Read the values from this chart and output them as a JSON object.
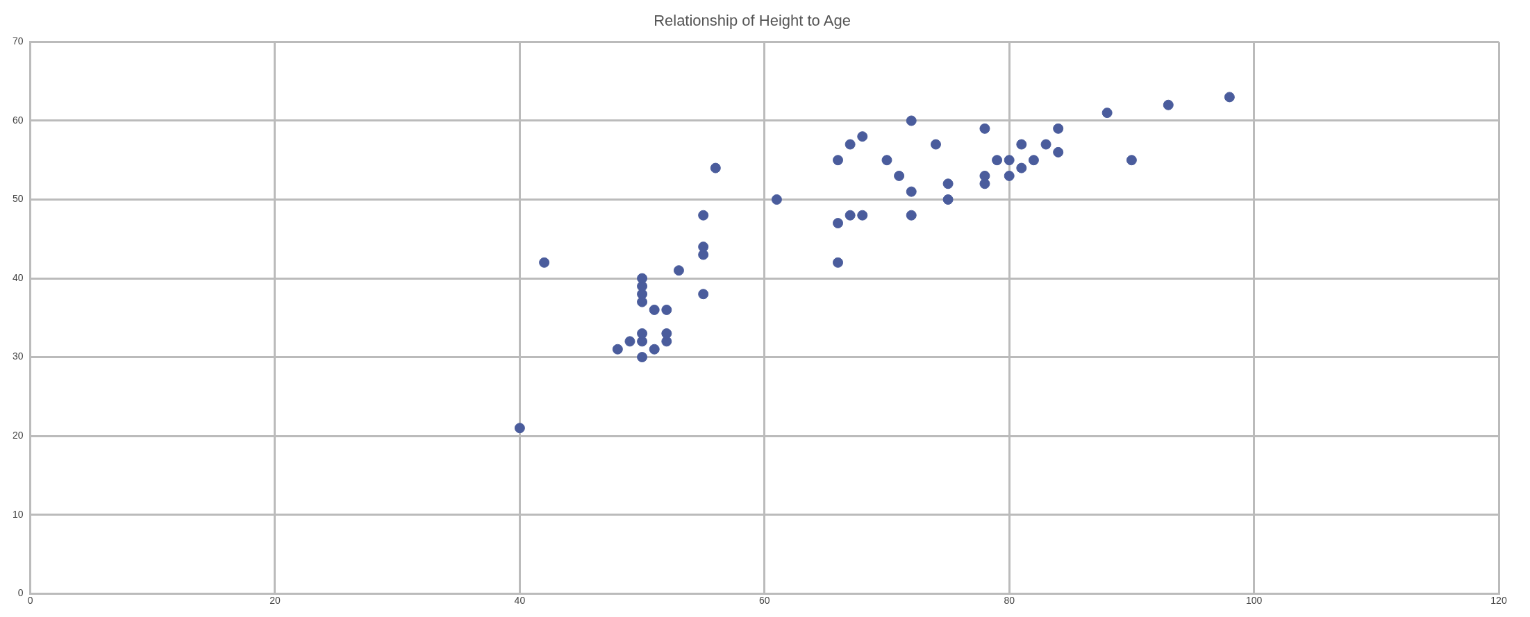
{
  "chart_data": {
    "type": "scatter",
    "title": "Relationship of Height to Age",
    "x": [
      40,
      42,
      48,
      49,
      50,
      50,
      50,
      50,
      50,
      50,
      50,
      51,
      51,
      52,
      52,
      52,
      53,
      55,
      55,
      55,
      55,
      56,
      61,
      66,
      66,
      66,
      67,
      67,
      68,
      68,
      70,
      71,
      72,
      72,
      72,
      74,
      75,
      75,
      78,
      78,
      78,
      79,
      80,
      80,
      81,
      81,
      82,
      83,
      84,
      84,
      88,
      90,
      93,
      98
    ],
    "values": [
      21,
      42,
      31,
      32,
      30,
      32,
      33,
      37,
      38,
      39,
      40,
      31,
      36,
      32,
      33,
      36,
      41,
      38,
      43,
      44,
      48,
      54,
      50,
      42,
      47,
      55,
      48,
      57,
      48,
      58,
      55,
      53,
      48,
      51,
      60,
      57,
      50,
      52,
      52,
      53,
      59,
      55,
      53,
      55,
      54,
      57,
      55,
      57,
      56,
      59,
      61,
      55,
      62,
      63
    ],
    "color": "#4a5c9c",
    "marker": "circle",
    "xlim": [
      0,
      120
    ],
    "xticks": [
      0,
      20,
      40,
      60,
      80,
      100,
      120
    ],
    "ylim": [
      0,
      70
    ],
    "yticks": [
      0,
      10,
      20,
      30,
      40,
      50,
      60,
      70
    ],
    "grid": true,
    "legend": false
  }
}
